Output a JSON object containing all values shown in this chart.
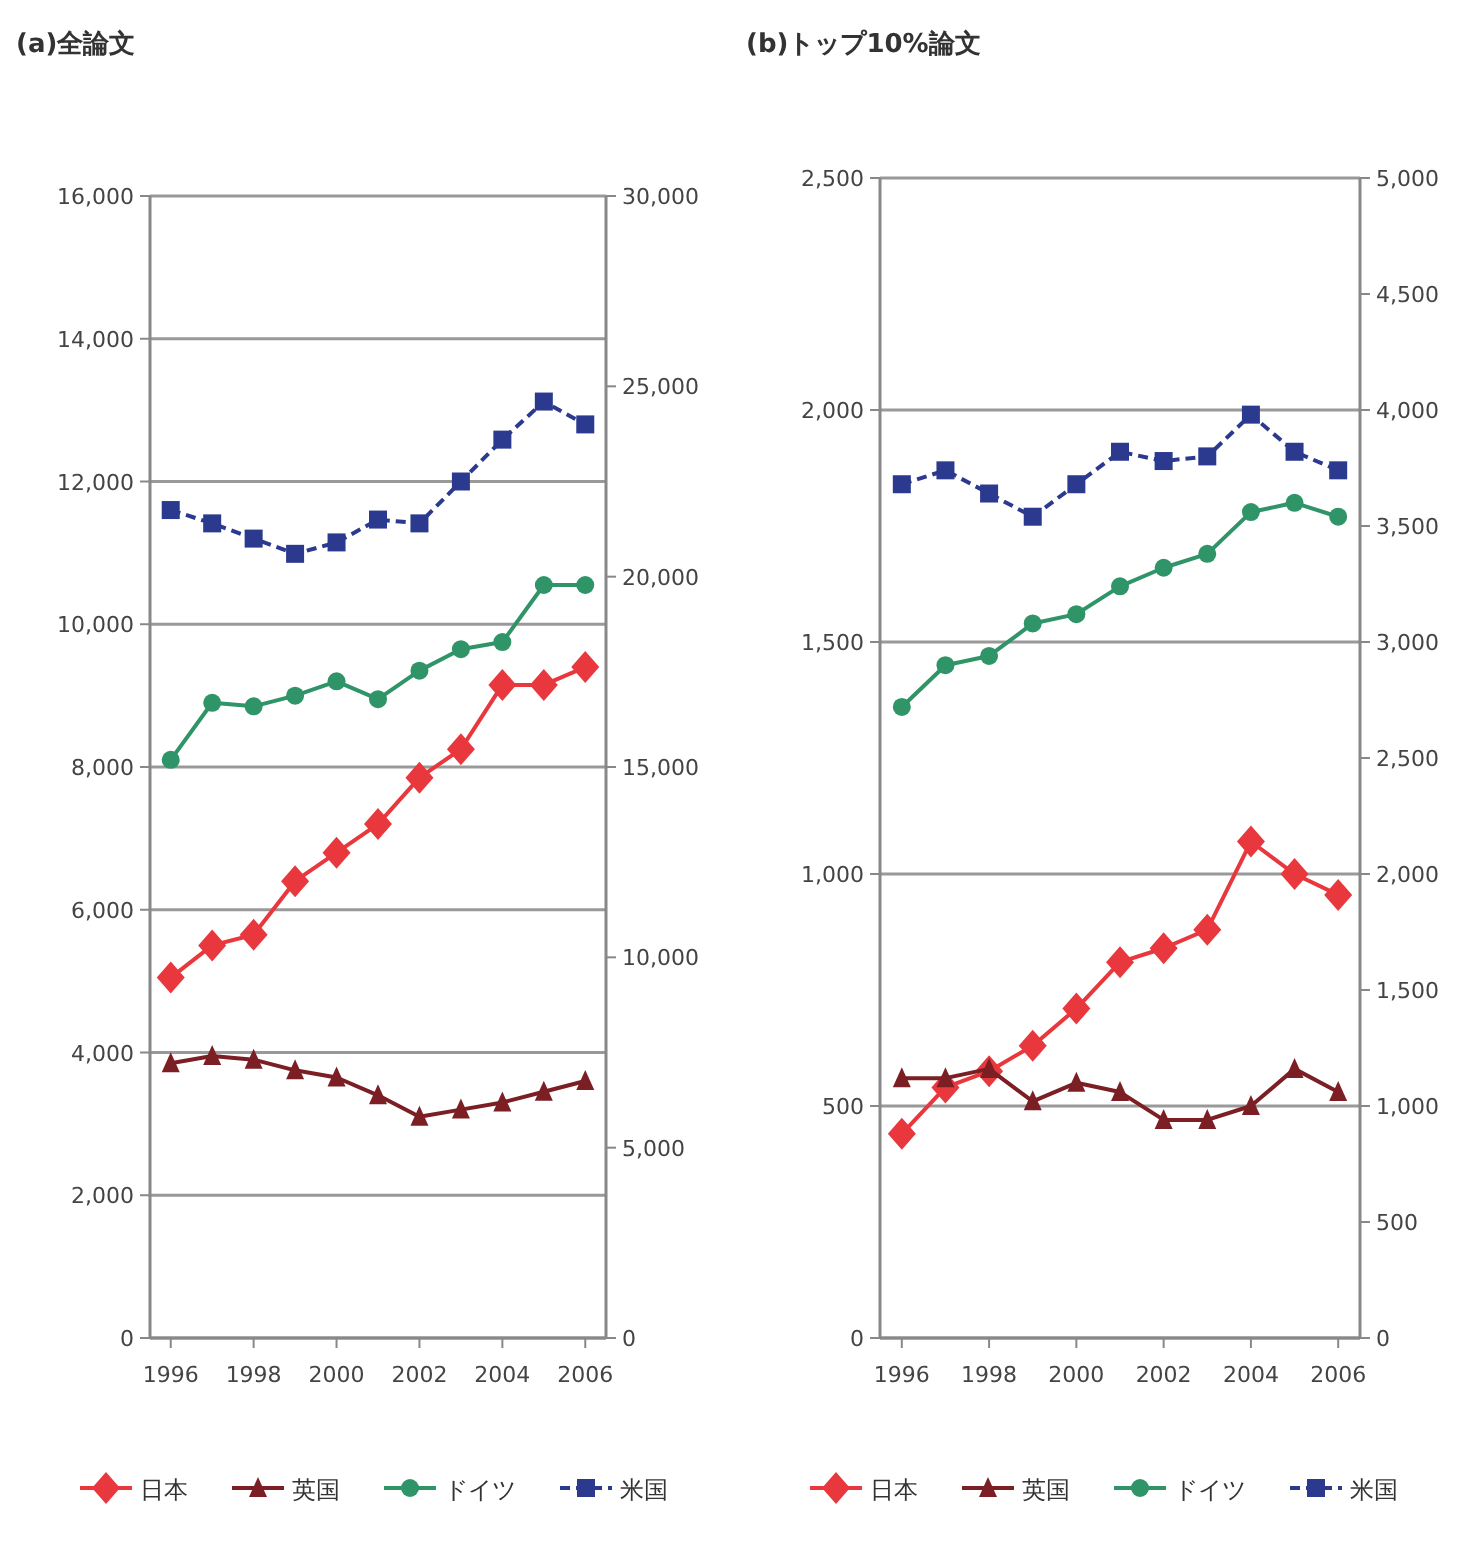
{
  "chart_data": [
    {
      "type": "line",
      "title": "(a)全論文",
      "x": [
        1996,
        1997,
        1998,
        1999,
        2000,
        2001,
        2002,
        2003,
        2004,
        2005,
        2006
      ],
      "xlim": [
        1995.5,
        2006.5
      ],
      "xticks": [
        1996,
        1998,
        2000,
        2002,
        2004,
        2006
      ],
      "ylim": [
        0,
        16000
      ],
      "yticks": [
        {
          "value": 0,
          "label": "0"
        },
        {
          "value": 2000,
          "label": "2,000"
        },
        {
          "value": 4000,
          "label": "4,000"
        },
        {
          "value": 6000,
          "label": "6,000"
        },
        {
          "value": 8000,
          "label": "8,000"
        },
        {
          "value": 10000,
          "label": "10,000"
        },
        {
          "value": 12000,
          "label": "12,000"
        },
        {
          "value": 14000,
          "label": "14,000"
        },
        {
          "value": 16000,
          "label": "16,000"
        }
      ],
      "y2lim": [
        0,
        30000
      ],
      "y2ticks": [
        {
          "value": 0,
          "label": "0"
        },
        {
          "value": 5000,
          "label": "5,000"
        },
        {
          "value": 10000,
          "label": "10,000"
        },
        {
          "value": 15000,
          "label": "15,000"
        },
        {
          "value": 20000,
          "label": "20,000"
        },
        {
          "value": 25000,
          "label": "25,000"
        },
        {
          "value": 30000,
          "label": "30,000"
        }
      ],
      "grid": "y",
      "legend": "bottom",
      "series": [
        {
          "name": "日本",
          "color": "#e8383d",
          "marker": "diamond",
          "values": [
            5050,
            5500,
            5650,
            6400,
            6800,
            7200,
            7850,
            8250,
            9150,
            9150,
            9400
          ]
        },
        {
          "name": "英国",
          "color": "#7b1f24",
          "marker": "triangle",
          "values": [
            3850,
            3950,
            3900,
            3750,
            3650,
            3400,
            3100,
            3200,
            3300,
            3450,
            3600
          ]
        },
        {
          "name": "ドイツ",
          "color": "#2f9467",
          "marker": "circle",
          "values": [
            8100,
            8900,
            8850,
            9000,
            9200,
            8950,
            9350,
            9650,
            9750,
            10550,
            10550
          ]
        },
        {
          "name": "米国",
          "color": "#2b3a8f",
          "marker": "square",
          "line_style": "dashed",
          "axis": "y2",
          "values": [
            21750,
            21400,
            21000,
            20600,
            20900,
            21500,
            21400,
            22500,
            23600,
            24600,
            24000
          ]
        }
      ]
    },
    {
      "type": "line",
      "title": "(b)トップ10%論文",
      "x": [
        1996,
        1997,
        1998,
        1999,
        2000,
        2001,
        2002,
        2003,
        2004,
        2005,
        2006
      ],
      "xlim": [
        1995.5,
        2006.5
      ],
      "xticks": [
        1996,
        1998,
        2000,
        2002,
        2004,
        2006
      ],
      "ylim": [
        0,
        2500
      ],
      "yticks": [
        {
          "value": 0,
          "label": "0"
        },
        500,
        {
          "value": 1000,
          "label": "1,000"
        },
        {
          "value": 1500,
          "label": "1,500"
        },
        {
          "value": 2000,
          "label": "2,000"
        },
        {
          "value": 2500,
          "label": "2,500"
        }
      ],
      "y2lim": [
        0,
        5000
      ],
      "y2ticks": [
        {
          "value": 0,
          "label": "0"
        },
        500,
        {
          "value": 1000,
          "label": "1,000"
        },
        {
          "value": 1500,
          "label": "1,500"
        },
        {
          "value": 2000,
          "label": "2,000"
        },
        {
          "value": 2500,
          "label": "2,500"
        },
        {
          "value": 3000,
          "label": "3,000"
        },
        {
          "value": 3500,
          "label": "3,500"
        },
        {
          "value": 4000,
          "label": "4,000"
        },
        {
          "value": 4500,
          "label": "4,500"
        },
        {
          "value": 5000,
          "label": "5,000"
        }
      ],
      "grid": "y",
      "legend": "bottom",
      "series": [
        {
          "name": "日本",
          "color": "#e8383d",
          "marker": "diamond",
          "values": [
            440,
            540,
            575,
            630,
            710,
            810,
            840,
            880,
            1070,
            1000,
            955
          ]
        },
        {
          "name": "英国",
          "color": "#7b1f24",
          "marker": "triangle",
          "values": [
            560,
            560,
            580,
            510,
            550,
            530,
            470,
            470,
            500,
            580,
            530
          ]
        },
        {
          "name": "ドイツ",
          "color": "#2f9467",
          "marker": "circle",
          "values": [
            1360,
            1450,
            1470,
            1540,
            1560,
            1620,
            1660,
            1690,
            1780,
            1800,
            1770
          ]
        },
        {
          "name": "米国",
          "color": "#2b3a8f",
          "marker": "square",
          "line_style": "dashed",
          "axis": "y2",
          "values": [
            3680,
            3740,
            3640,
            3540,
            3680,
            3820,
            3780,
            3800,
            3980,
            3820,
            3740
          ]
        }
      ]
    }
  ]
}
